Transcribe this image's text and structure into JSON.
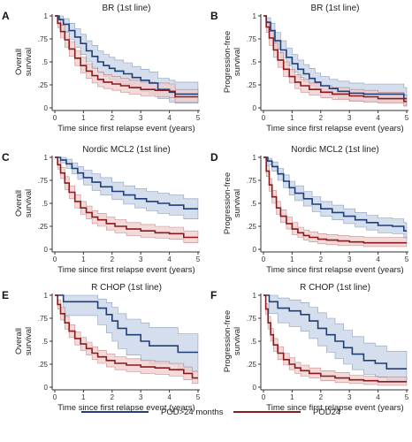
{
  "figure": {
    "xlabel": "Time since first relapse event (years)",
    "legend": [
      {
        "name": "POD>24 months",
        "color": "#1f3f7a",
        "band": "#c6d3e6"
      },
      {
        "name": "POD24",
        "color": "#8b1a1a",
        "band": "#efcccc"
      }
    ]
  },
  "chart_data": [
    {
      "type": "line",
      "panel": "A",
      "title": "BR (1st line)",
      "ylabel": [
        "Overall",
        "survival"
      ],
      "xlim": [
        0,
        5
      ],
      "ylim": [
        0,
        1
      ],
      "xticks": [
        0,
        1,
        2,
        3,
        4,
        5
      ],
      "yticks": [
        "0",
        ".25",
        ".5",
        ".75",
        "1"
      ],
      "series": [
        {
          "name": "POD>24 months",
          "x": [
            0,
            0.15,
            0.3,
            0.5,
            0.7,
            0.9,
            1.1,
            1.3,
            1.5,
            1.7,
            1.9,
            2.1,
            2.4,
            2.7,
            3.0,
            3.3,
            3.6,
            4.0,
            4.2,
            5.0
          ],
          "y": [
            1,
            0.96,
            0.91,
            0.84,
            0.77,
            0.7,
            0.62,
            0.56,
            0.5,
            0.46,
            0.43,
            0.4,
            0.37,
            0.33,
            0.3,
            0.27,
            0.2,
            0.17,
            0.15,
            0.15
          ],
          "lower": [
            1,
            0.9,
            0.83,
            0.74,
            0.66,
            0.58,
            0.5,
            0.44,
            0.38,
            0.34,
            0.31,
            0.28,
            0.25,
            0.21,
            0.18,
            0.15,
            0.1,
            0.06,
            0.05,
            0.05
          ],
          "upper": [
            1,
            1,
            0.97,
            0.92,
            0.86,
            0.8,
            0.73,
            0.68,
            0.62,
            0.58,
            0.55,
            0.52,
            0.49,
            0.45,
            0.42,
            0.39,
            0.32,
            0.3,
            0.28,
            0.28
          ]
        },
        {
          "name": "POD24",
          "x": [
            0,
            0.1,
            0.2,
            0.35,
            0.5,
            0.7,
            0.9,
            1.1,
            1.3,
            1.5,
            1.7,
            2.0,
            2.3,
            2.6,
            3.0,
            3.5,
            4.0,
            4.2,
            5.0
          ],
          "y": [
            1,
            0.92,
            0.83,
            0.74,
            0.64,
            0.54,
            0.46,
            0.4,
            0.35,
            0.31,
            0.28,
            0.26,
            0.24,
            0.22,
            0.2,
            0.19,
            0.18,
            0.12,
            0.12
          ],
          "lower": [
            1,
            0.87,
            0.76,
            0.66,
            0.56,
            0.46,
            0.38,
            0.32,
            0.27,
            0.23,
            0.21,
            0.19,
            0.17,
            0.15,
            0.13,
            0.12,
            0.11,
            0.06,
            0.06
          ],
          "upper": [
            1,
            0.97,
            0.9,
            0.82,
            0.72,
            0.62,
            0.55,
            0.48,
            0.43,
            0.39,
            0.36,
            0.34,
            0.32,
            0.3,
            0.28,
            0.27,
            0.26,
            0.2,
            0.2
          ]
        }
      ]
    },
    {
      "type": "line",
      "panel": "B",
      "title": "BR (1st line)",
      "ylabel": [
        "Progression-free",
        "survival"
      ],
      "xlim": [
        0,
        5
      ],
      "ylim": [
        0,
        1
      ],
      "xticks": [
        0,
        1,
        2,
        3,
        4,
        5
      ],
      "yticks": [
        "0",
        ".25",
        ".5",
        ".75",
        "1"
      ],
      "series": [
        {
          "name": "POD>24 months",
          "x": [
            0,
            0.1,
            0.25,
            0.4,
            0.6,
            0.8,
            1.0,
            1.2,
            1.4,
            1.6,
            1.8,
            2.0,
            2.3,
            2.6,
            3.0,
            3.5,
            4.0,
            4.5,
            4.9,
            5.0
          ],
          "y": [
            1,
            0.93,
            0.84,
            0.73,
            0.63,
            0.55,
            0.48,
            0.42,
            0.37,
            0.32,
            0.28,
            0.24,
            0.21,
            0.18,
            0.16,
            0.15,
            0.15,
            0.15,
            0.1,
            0.1
          ],
          "lower": [
            1,
            0.87,
            0.76,
            0.64,
            0.54,
            0.46,
            0.39,
            0.33,
            0.28,
            0.24,
            0.2,
            0.16,
            0.13,
            0.1,
            0.08,
            0.07,
            0.06,
            0.06,
            0.02,
            0.02
          ],
          "upper": [
            1,
            0.98,
            0.92,
            0.82,
            0.73,
            0.65,
            0.58,
            0.52,
            0.47,
            0.43,
            0.38,
            0.34,
            0.31,
            0.29,
            0.27,
            0.26,
            0.26,
            0.26,
            0.22,
            0.22
          ]
        },
        {
          "name": "POD24",
          "x": [
            0,
            0.1,
            0.2,
            0.35,
            0.5,
            0.7,
            0.9,
            1.1,
            1.3,
            1.6,
            2.0,
            2.4,
            3.0,
            3.5,
            4.0,
            4.9,
            5.0
          ],
          "y": [
            1,
            0.88,
            0.76,
            0.63,
            0.52,
            0.42,
            0.34,
            0.28,
            0.24,
            0.2,
            0.17,
            0.15,
            0.13,
            0.12,
            0.1,
            0.07,
            0.07
          ],
          "lower": [
            1,
            0.82,
            0.68,
            0.55,
            0.44,
            0.34,
            0.27,
            0.21,
            0.17,
            0.14,
            0.11,
            0.09,
            0.07,
            0.06,
            0.05,
            0.02,
            0.02
          ],
          "upper": [
            1,
            0.94,
            0.83,
            0.71,
            0.6,
            0.5,
            0.42,
            0.36,
            0.31,
            0.27,
            0.24,
            0.22,
            0.2,
            0.19,
            0.17,
            0.14,
            0.14
          ]
        }
      ]
    },
    {
      "type": "line",
      "panel": "C",
      "title": "Nordic MCL2 (1st line)",
      "ylabel": [
        "Overall",
        "survival"
      ],
      "xlim": [
        0,
        5
      ],
      "ylim": [
        0,
        1
      ],
      "xticks": [
        0,
        1,
        2,
        3,
        4,
        5
      ],
      "yticks": [
        "0",
        ".25",
        ".5",
        ".75",
        "1"
      ],
      "series": [
        {
          "name": "POD>24 months",
          "x": [
            0,
            0.2,
            0.4,
            0.6,
            0.8,
            1.0,
            1.3,
            1.6,
            2.0,
            2.4,
            2.8,
            3.2,
            3.6,
            4.0,
            4.5,
            5.0
          ],
          "y": [
            1,
            0.97,
            0.93,
            0.88,
            0.83,
            0.78,
            0.73,
            0.68,
            0.63,
            0.59,
            0.55,
            0.52,
            0.5,
            0.48,
            0.44,
            0.44
          ],
          "lower": [
            1,
            0.94,
            0.88,
            0.82,
            0.76,
            0.7,
            0.64,
            0.59,
            0.54,
            0.49,
            0.45,
            0.42,
            0.39,
            0.37,
            0.33,
            0.33
          ],
          "upper": [
            1,
            1,
            0.98,
            0.94,
            0.9,
            0.86,
            0.82,
            0.78,
            0.73,
            0.69,
            0.66,
            0.63,
            0.61,
            0.59,
            0.55,
            0.55
          ]
        },
        {
          "name": "POD24",
          "x": [
            0,
            0.1,
            0.2,
            0.35,
            0.5,
            0.7,
            0.9,
            1.1,
            1.3,
            1.5,
            1.8,
            2.1,
            2.5,
            3.0,
            3.5,
            4.0,
            4.5,
            5.0
          ],
          "y": [
            1,
            0.92,
            0.83,
            0.72,
            0.62,
            0.52,
            0.45,
            0.4,
            0.35,
            0.32,
            0.28,
            0.25,
            0.22,
            0.2,
            0.18,
            0.17,
            0.13,
            0.13
          ],
          "lower": [
            1,
            0.87,
            0.77,
            0.65,
            0.55,
            0.45,
            0.38,
            0.33,
            0.28,
            0.25,
            0.21,
            0.18,
            0.15,
            0.13,
            0.12,
            0.11,
            0.07,
            0.07
          ],
          "upper": [
            1,
            0.96,
            0.89,
            0.79,
            0.69,
            0.59,
            0.52,
            0.47,
            0.42,
            0.39,
            0.35,
            0.32,
            0.29,
            0.27,
            0.25,
            0.24,
            0.2,
            0.2
          ]
        }
      ]
    },
    {
      "type": "line",
      "panel": "D",
      "title": "Nordic MCL2 (1st line)",
      "ylabel": [
        "Progression-free",
        "survival"
      ],
      "xlim": [
        0,
        5
      ],
      "ylim": [
        0,
        1
      ],
      "xticks": [
        0,
        1,
        2,
        3,
        4,
        5
      ],
      "yticks": [
        "0",
        ".25",
        ".5",
        ".75",
        "1"
      ],
      "series": [
        {
          "name": "POD>24 months",
          "x": [
            0,
            0.15,
            0.3,
            0.5,
            0.7,
            0.9,
            1.1,
            1.4,
            1.7,
            2.0,
            2.4,
            2.8,
            3.2,
            3.6,
            4.0,
            4.5,
            4.9,
            5.0
          ],
          "y": [
            1,
            0.96,
            0.9,
            0.82,
            0.74,
            0.67,
            0.61,
            0.55,
            0.49,
            0.44,
            0.4,
            0.36,
            0.32,
            0.29,
            0.26,
            0.25,
            0.2,
            0.2
          ],
          "lower": [
            1,
            0.92,
            0.85,
            0.75,
            0.67,
            0.59,
            0.53,
            0.47,
            0.41,
            0.36,
            0.32,
            0.28,
            0.24,
            0.21,
            0.18,
            0.17,
            0.12,
            0.12
          ],
          "upper": [
            1,
            0.99,
            0.95,
            0.88,
            0.81,
            0.74,
            0.69,
            0.63,
            0.57,
            0.52,
            0.48,
            0.44,
            0.4,
            0.37,
            0.34,
            0.33,
            0.29,
            0.29
          ]
        },
        {
          "name": "POD24",
          "x": [
            0,
            0.1,
            0.2,
            0.3,
            0.45,
            0.6,
            0.8,
            1.0,
            1.2,
            1.4,
            1.6,
            1.9,
            2.2,
            2.6,
            3.0,
            3.5,
            4.0,
            5.0
          ],
          "y": [
            1,
            0.85,
            0.7,
            0.57,
            0.45,
            0.36,
            0.28,
            0.22,
            0.18,
            0.15,
            0.13,
            0.11,
            0.1,
            0.09,
            0.08,
            0.07,
            0.07,
            0.07
          ],
          "lower": [
            1,
            0.79,
            0.63,
            0.5,
            0.38,
            0.29,
            0.22,
            0.16,
            0.13,
            0.1,
            0.08,
            0.06,
            0.05,
            0.04,
            0.04,
            0.03,
            0.03,
            0.03
          ],
          "upper": [
            1,
            0.91,
            0.77,
            0.64,
            0.52,
            0.43,
            0.35,
            0.29,
            0.24,
            0.21,
            0.19,
            0.17,
            0.16,
            0.15,
            0.14,
            0.13,
            0.13,
            0.13
          ]
        }
      ]
    },
    {
      "type": "line",
      "panel": "E",
      "title": "R CHOP (1st line)",
      "ylabel": [
        "Overall",
        "survival"
      ],
      "xlim": [
        0,
        5
      ],
      "ylim": [
        0,
        1
      ],
      "xticks": [
        0,
        1,
        2,
        3,
        4,
        5
      ],
      "yticks": [
        "0",
        ".25",
        ".5",
        ".75",
        "1"
      ],
      "series": [
        {
          "name": "POD>24 months",
          "x": [
            0,
            0.3,
            1.1,
            1.5,
            1.8,
            2.0,
            2.2,
            2.5,
            3.0,
            3.3,
            3.8,
            4.3,
            5.0
          ],
          "y": [
            1,
            0.93,
            0.93,
            0.86,
            0.79,
            0.72,
            0.64,
            0.57,
            0.5,
            0.45,
            0.45,
            0.38,
            0.38
          ],
          "lower": [
            1,
            0.78,
            0.78,
            0.68,
            0.59,
            0.5,
            0.42,
            0.35,
            0.29,
            0.25,
            0.25,
            0.18,
            0.18
          ],
          "upper": [
            1,
            1,
            1,
            0.96,
            0.92,
            0.87,
            0.8,
            0.74,
            0.7,
            0.65,
            0.65,
            0.58,
            0.58
          ]
        },
        {
          "name": "POD24",
          "x": [
            0,
            0.1,
            0.2,
            0.35,
            0.5,
            0.7,
            0.9,
            1.1,
            1.3,
            1.5,
            1.8,
            2.1,
            2.5,
            3.0,
            3.5,
            4.0,
            4.5,
            4.8,
            5.0
          ],
          "y": [
            1,
            0.9,
            0.8,
            0.7,
            0.61,
            0.53,
            0.47,
            0.42,
            0.37,
            0.33,
            0.29,
            0.26,
            0.24,
            0.22,
            0.21,
            0.19,
            0.15,
            0.1,
            0.1
          ],
          "lower": [
            1,
            0.85,
            0.73,
            0.63,
            0.54,
            0.46,
            0.4,
            0.35,
            0.3,
            0.26,
            0.22,
            0.19,
            0.17,
            0.15,
            0.14,
            0.12,
            0.08,
            0.04,
            0.04
          ],
          "upper": [
            1,
            0.95,
            0.87,
            0.77,
            0.68,
            0.6,
            0.54,
            0.49,
            0.44,
            0.4,
            0.36,
            0.33,
            0.31,
            0.29,
            0.28,
            0.26,
            0.22,
            0.17,
            0.17
          ]
        }
      ]
    },
    {
      "type": "line",
      "panel": "F",
      "title": "R CHOP (1st line)",
      "ylabel": [
        "Progression-free",
        "survival"
      ],
      "xlim": [
        0,
        5
      ],
      "ylim": [
        0,
        1
      ],
      "xticks": [
        0,
        1,
        2,
        3,
        4,
        5
      ],
      "yticks": [
        "0",
        ".25",
        ".5",
        ".75",
        "1"
      ],
      "series": [
        {
          "name": "POD>24 months",
          "x": [
            0,
            0.2,
            0.5,
            0.9,
            1.3,
            1.6,
            1.9,
            2.2,
            2.5,
            2.8,
            3.1,
            3.5,
            3.9,
            4.3,
            5.0
          ],
          "y": [
            1,
            0.93,
            0.86,
            0.83,
            0.79,
            0.72,
            0.64,
            0.57,
            0.5,
            0.43,
            0.36,
            0.29,
            0.26,
            0.2,
            0.2
          ],
          "lower": [
            1,
            0.8,
            0.7,
            0.66,
            0.61,
            0.53,
            0.45,
            0.38,
            0.31,
            0.25,
            0.19,
            0.14,
            0.11,
            0.07,
            0.07
          ],
          "upper": [
            1,
            1,
            0.97,
            0.95,
            0.92,
            0.87,
            0.81,
            0.75,
            0.69,
            0.62,
            0.55,
            0.48,
            0.45,
            0.39,
            0.39
          ]
        },
        {
          "name": "POD24",
          "x": [
            0,
            0.08,
            0.16,
            0.25,
            0.35,
            0.5,
            0.7,
            0.9,
            1.1,
            1.3,
            1.6,
            2.0,
            2.5,
            3.0,
            3.5,
            4.0,
            5.0
          ],
          "y": [
            1,
            0.85,
            0.7,
            0.57,
            0.46,
            0.37,
            0.3,
            0.25,
            0.21,
            0.18,
            0.15,
            0.12,
            0.1,
            0.08,
            0.07,
            0.06,
            0.06
          ],
          "lower": [
            1,
            0.79,
            0.63,
            0.5,
            0.39,
            0.3,
            0.24,
            0.19,
            0.15,
            0.12,
            0.1,
            0.07,
            0.05,
            0.04,
            0.03,
            0.02,
            0.02
          ],
          "upper": [
            1,
            0.91,
            0.77,
            0.64,
            0.53,
            0.44,
            0.37,
            0.32,
            0.27,
            0.24,
            0.21,
            0.18,
            0.16,
            0.13,
            0.12,
            0.11,
            0.11
          ]
        }
      ]
    }
  ]
}
